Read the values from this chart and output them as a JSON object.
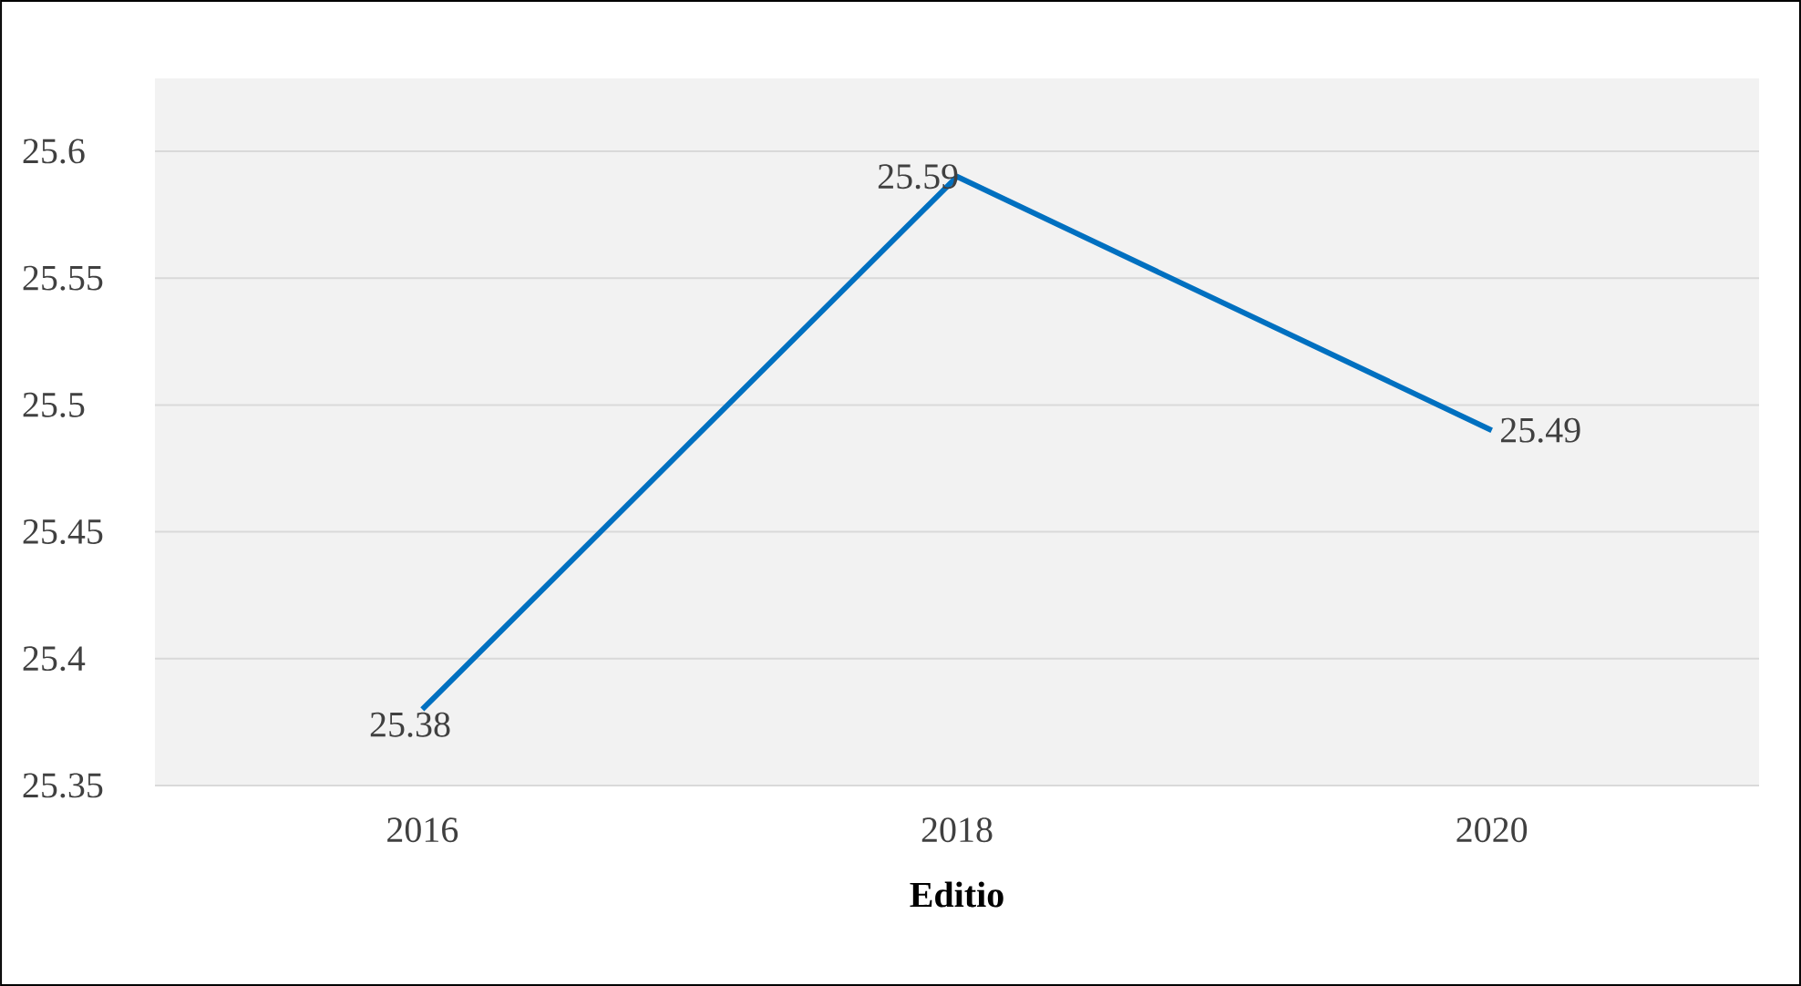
{
  "chart_data": {
    "type": "line",
    "xlabel": "Editio",
    "categories": [
      "2016",
      "2018",
      "2020"
    ],
    "series": [
      {
        "color": "#0070c0",
        "values": [
          25.38,
          25.59,
          25.49
        ]
      }
    ],
    "ylim": [
      25.35,
      25.6
    ],
    "yticks": [
      25.35,
      25.4,
      25.45,
      25.5,
      25.55,
      25.6
    ],
    "grid": "y",
    "data_labels": true,
    "marker": "none",
    "line_style": "solid"
  }
}
